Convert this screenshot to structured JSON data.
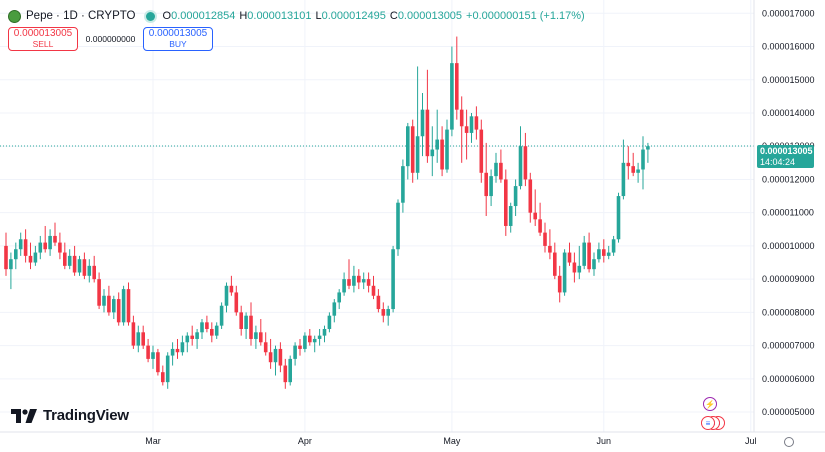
{
  "header": {
    "title": "Pepe · 1D · CRYPTO",
    "logo_icon": "pepe-logo-icon",
    "live_icon": "market-open-dot-icon",
    "ohlc": [
      {
        "key": "O",
        "value": "0.000012854"
      },
      {
        "key": "H",
        "value": "0.000013101"
      },
      {
        "key": "L",
        "value": "0.000012495"
      },
      {
        "key": "C",
        "value": "0.000013005"
      }
    ],
    "change": "+0.000000151 (+1.17%)"
  },
  "trade": {
    "sell_price": "0.000013005",
    "sell_label": "SELL",
    "spread": "0.000000000",
    "buy_price": "0.000013005",
    "buy_label": "BUY"
  },
  "brand": {
    "name": "TradingView",
    "icon": "tradingview-logo-icon"
  },
  "price_tag": {
    "price": "0.000013005",
    "countdown": "14:04:24"
  },
  "indicators": {
    "bolt_icon": "lightning-icon",
    "flag_icon": "us-flag-icon",
    "settings_icon": "gear-icon"
  },
  "colors": {
    "up": "#26a69a",
    "down": "#f23645",
    "grid": "#f0f3fa",
    "axis_text": "#131722",
    "price_line": "#26a69a"
  },
  "chart_data": {
    "type": "candlestick",
    "y_axis": {
      "ticks": [
        "0.000017000",
        "0.000016000",
        "0.000015000",
        "0.000014000",
        "0.000013000",
        "0.000012000",
        "0.000011000",
        "0.000010000",
        "0.000009000",
        "0.000008000",
        "0.000007000",
        "0.000006000",
        "0.000005000"
      ],
      "range": [
        4.4e-06,
        1.74e-05
      ]
    },
    "x_axis": {
      "labels": [
        {
          "label": "Mar",
          "index": 30
        },
        {
          "label": "Apr",
          "index": 61
        },
        {
          "label": "May",
          "index": 91
        },
        {
          "label": "Jun",
          "index": 122
        },
        {
          "label": "Jul",
          "index": 152
        }
      ]
    },
    "current_price": 1.3005e-05,
    "candles": [
      [
        1e-05,
        1.04e-05,
        9.1e-06,
        9.3e-06
      ],
      [
        9.3e-06,
        9.8e-06,
        8.7e-06,
        9.6e-06
      ],
      [
        9.6e-06,
        1.01e-05,
        9.3e-06,
        9.9e-06
      ],
      [
        9.9e-06,
        1.04e-05,
        9.7e-06,
        1.02e-05
      ],
      [
        1.02e-05,
        1.05e-05,
        9.5e-06,
        9.7e-06
      ],
      [
        9.7e-06,
        1.01e-05,
        9.3e-06,
        9.5e-06
      ],
      [
        9.5e-06,
        1e-05,
        9.4e-06,
        9.8e-06
      ],
      [
        9.8e-06,
        1.03e-05,
        9.6e-06,
        1.01e-05
      ],
      [
        1.01e-05,
        1.06e-05,
        9.8e-06,
        9.9e-06
      ],
      [
        9.9e-06,
        1.05e-05,
        9.7e-06,
        1.03e-05
      ],
      [
        1.03e-05,
        1.07e-05,
        1e-05,
        1.01e-05
      ],
      [
        1.01e-05,
        1.04e-05,
        9.6e-06,
        9.8e-06
      ],
      [
        9.8e-06,
        1.01e-05,
        9.3e-06,
        9.4e-06
      ],
      [
        9.4e-06,
        9.9e-06,
        9.3e-06,
        9.7e-06
      ],
      [
        9.7e-06,
        1e-05,
        9.1e-06,
        9.2e-06
      ],
      [
        9.2e-06,
        9.7e-06,
        9.1e-06,
        9.6e-06
      ],
      [
        9.6e-06,
        9.8e-06,
        9e-06,
        9.1e-06
      ],
      [
        9.1e-06,
        9.6e-06,
        8.9e-06,
        9.4e-06
      ],
      [
        9.4e-06,
        9.7e-06,
        8.9e-06,
        9e-06
      ],
      [
        9e-06,
        9.2e-06,
        8.1e-06,
        8.2e-06
      ],
      [
        8.2e-06,
        8.7e-06,
        8e-06,
        8.5e-06
      ],
      [
        8.5e-06,
        8.8e-06,
        7.9e-06,
        8e-06
      ],
      [
        8e-06,
        8.5e-06,
        7.8e-06,
        8.4e-06
      ],
      [
        8.4e-06,
        8.6e-06,
        7.6e-06,
        7.7e-06
      ],
      [
        7.7e-06,
        8.8e-06,
        7.6e-06,
        8.7e-06
      ],
      [
        8.7e-06,
        8.9e-06,
        7.6e-06,
        7.7e-06
      ],
      [
        7.7e-06,
        7.9e-06,
        6.9e-06,
        7e-06
      ],
      [
        7e-06,
        7.6e-06,
        6.8e-06,
        7.4e-06
      ],
      [
        7.4e-06,
        7.6e-06,
        6.9e-06,
        7e-06
      ],
      [
        7e-06,
        7.2e-06,
        6.5e-06,
        6.6e-06
      ],
      [
        6.6e-06,
        7e-06,
        6.3e-06,
        6.8e-06
      ],
      [
        6.8e-06,
        6.9e-06,
        6.1e-06,
        6.2e-06
      ],
      [
        6.2e-06,
        6.4e-06,
        5.8e-06,
        5.9e-06
      ],
      [
        5.9e-06,
        6.8e-06,
        5.7e-06,
        6.7e-06
      ],
      [
        6.7e-06,
        7.1e-06,
        6.4e-06,
        6.9e-06
      ],
      [
        6.9e-06,
        7.2e-06,
        6.6e-06,
        6.8e-06
      ],
      [
        6.8e-06,
        7.3e-06,
        6.7e-06,
        7.1e-06
      ],
      [
        7.1e-06,
        7.4e-06,
        6.8e-06,
        7.3e-06
      ],
      [
        7.3e-06,
        7.6e-06,
        7e-06,
        7.2e-06
      ],
      [
        7.2e-06,
        7.5e-06,
        6.9e-06,
        7.4e-06
      ],
      [
        7.4e-06,
        7.8e-06,
        7.2e-06,
        7.7e-06
      ],
      [
        7.7e-06,
        7.9e-06,
        7.4e-06,
        7.5e-06
      ],
      [
        7.5e-06,
        7.7e-06,
        7.1e-06,
        7.3e-06
      ],
      [
        7.3e-06,
        7.7e-06,
        7.2e-06,
        7.6e-06
      ],
      [
        7.6e-06,
        8.3e-06,
        7.5e-06,
        8.2e-06
      ],
      [
        8.2e-06,
        8.9e-06,
        8e-06,
        8.8e-06
      ],
      [
        8.8e-06,
        9.1e-06,
        8.5e-06,
        8.6e-06
      ],
      [
        8.6e-06,
        8.8e-06,
        7.9e-06,
        8e-06
      ],
      [
        8e-06,
        8.2e-06,
        7.3e-06,
        7.5e-06
      ],
      [
        7.5e-06,
        8e-06,
        7.2e-06,
        7.9e-06
      ],
      [
        7.9e-06,
        8.3e-06,
        7e-06,
        7.2e-06
      ],
      [
        7.2e-06,
        7.6e-06,
        6.9e-06,
        7.4e-06
      ],
      [
        7.4e-06,
        7.8e-06,
        7e-06,
        7.1e-06
      ],
      [
        7.1e-06,
        7.4e-06,
        6.7e-06,
        6.8e-06
      ],
      [
        6.8e-06,
        7.2e-06,
        6.3e-06,
        6.5e-06
      ],
      [
        6.5e-06,
        7e-06,
        6.1e-06,
        6.9e-06
      ],
      [
        6.9e-06,
        7.1e-06,
        6.2e-06,
        6.4e-06
      ],
      [
        6.4e-06,
        6.6e-06,
        5.7e-06,
        5.9e-06
      ],
      [
        5.9e-06,
        6.7e-06,
        5.8e-06,
        6.6e-06
      ],
      [
        6.6e-06,
        7.1e-06,
        6.4e-06,
        7e-06
      ],
      [
        7e-06,
        7.2e-06,
        6.7e-06,
        6.9e-06
      ],
      [
        6.9e-06,
        7.4e-06,
        6.8e-06,
        7.3e-06
      ],
      [
        7.3e-06,
        7.5e-06,
        7e-06,
        7.1e-06
      ],
      [
        7.1e-06,
        7.3e-06,
        6.8e-06,
        7.2e-06
      ],
      [
        7.2e-06,
        7.5e-06,
        7e-06,
        7.3e-06
      ],
      [
        7.3e-06,
        7.6e-06,
        7.1e-06,
        7.5e-06
      ],
      [
        7.5e-06,
        8e-06,
        7.4e-06,
        7.9e-06
      ],
      [
        7.9e-06,
        8.4e-06,
        7.7e-06,
        8.3e-06
      ],
      [
        8.3e-06,
        8.7e-06,
        8.1e-06,
        8.6e-06
      ],
      [
        8.6e-06,
        9.2e-06,
        8.5e-06,
        9e-06
      ],
      [
        9e-06,
        9.6e-06,
        8.7e-06,
        8.8e-06
      ],
      [
        8.8e-06,
        9.4e-06,
        8.6e-06,
        9.1e-06
      ],
      [
        9.1e-06,
        9.3e-06,
        8.7e-06,
        8.9e-06
      ],
      [
        8.9e-06,
        9.2e-06,
        8.7e-06,
        9e-06
      ],
      [
        9e-06,
        9.2e-06,
        8.6e-06,
        8.8e-06
      ],
      [
        8.8e-06,
        9.1e-06,
        8.4e-06,
        8.5e-06
      ],
      [
        8.5e-06,
        8.7e-06,
        8e-06,
        8.1e-06
      ],
      [
        8.1e-06,
        8.3e-06,
        7.7e-06,
        7.9e-06
      ],
      [
        7.9e-06,
        8.2e-06,
        7.6e-06,
        8.1e-06
      ],
      [
        8.1e-06,
        1e-05,
        8e-06,
        9.9e-06
      ],
      [
        9.9e-06,
        1.14e-05,
        9.7e-06,
        1.13e-05
      ],
      [
        1.13e-05,
        1.26e-05,
        1.1e-05,
        1.24e-05
      ],
      [
        1.24e-05,
        1.37e-05,
        1.2e-05,
        1.36e-05
      ],
      [
        1.36e-05,
        1.38e-05,
        1.19e-05,
        1.22e-05
      ],
      [
        1.22e-05,
        1.54e-05,
        1.2e-05,
        1.33e-05
      ],
      [
        1.33e-05,
        1.46e-05,
        1.27e-05,
        1.41e-05
      ],
      [
        1.41e-05,
        1.53e-05,
        1.25e-05,
        1.27e-05
      ],
      [
        1.27e-05,
        1.36e-05,
        1.21e-05,
        1.29e-05
      ],
      [
        1.29e-05,
        1.41e-05,
        1.25e-05,
        1.32e-05
      ],
      [
        1.32e-05,
        1.36e-05,
        1.21e-05,
        1.23e-05
      ],
      [
        1.23e-05,
        1.38e-05,
        1.22e-05,
        1.35e-05
      ],
      [
        1.35e-05,
        1.6e-05,
        1.33e-05,
        1.55e-05
      ],
      [
        1.55e-05,
        1.63e-05,
        1.38e-05,
        1.41e-05
      ],
      [
        1.41e-05,
        1.45e-05,
        1.25e-05,
        1.36e-05
      ],
      [
        1.36e-05,
        1.41e-05,
        1.26e-05,
        1.34e-05
      ],
      [
        1.34e-05,
        1.4e-05,
        1.31e-05,
        1.39e-05
      ],
      [
        1.39e-05,
        1.42e-05,
        1.32e-05,
        1.35e-05
      ],
      [
        1.35e-05,
        1.38e-05,
        1.19e-05,
        1.22e-05
      ],
      [
        1.22e-05,
        1.31e-05,
        1.09e-05,
        1.15e-05
      ],
      [
        1.15e-05,
        1.23e-05,
        1.12e-05,
        1.21e-05
      ],
      [
        1.21e-05,
        1.28e-05,
        1.19e-05,
        1.25e-05
      ],
      [
        1.25e-05,
        1.29e-05,
        1.19e-05,
        1.2e-05
      ],
      [
        1.2e-05,
        1.23e-05,
        1.03e-05,
        1.06e-05
      ],
      [
        1.06e-05,
        1.13e-05,
        1.04e-05,
        1.12e-05
      ],
      [
        1.12e-05,
        1.2e-05,
        1.09e-05,
        1.18e-05
      ],
      [
        1.18e-05,
        1.36e-05,
        1.17e-05,
        1.3e-05
      ],
      [
        1.3e-05,
        1.34e-05,
        1.18e-05,
        1.2e-05
      ],
      [
        1.2e-05,
        1.22e-05,
        1.07e-05,
        1.1e-05
      ],
      [
        1.1e-05,
        1.17e-05,
        1.06e-05,
        1.08e-05
      ],
      [
        1.08e-05,
        1.13e-05,
        1.03e-05,
        1.04e-05
      ],
      [
        1.04e-05,
        1.07e-05,
        9.8e-06,
        1e-05
      ],
      [
        1e-05,
        1.05e-05,
        9.6e-06,
        9.8e-06
      ],
      [
        9.8e-06,
        1.01e-05,
        9e-06,
        9.1e-06
      ],
      [
        9.1e-06,
        9.4e-06,
        8.3e-06,
        8.6e-06
      ],
      [
        8.6e-06,
        9.9e-06,
        8.5e-06,
        9.8e-06
      ],
      [
        9.8e-06,
        1.01e-05,
        9.4e-06,
        9.5e-06
      ],
      [
        9.5e-06,
        9.8e-06,
        8.9e-06,
        9.2e-06
      ],
      [
        9.2e-06,
        1e-05,
        9e-06,
        9.4e-06
      ],
      [
        9.4e-06,
        1.03e-05,
        9.3e-06,
        1.01e-05
      ],
      [
        1.01e-05,
        1.04e-05,
        9.2e-06,
        9.3e-06
      ],
      [
        9.3e-06,
        9.8e-06,
        9.1e-06,
        9.6e-06
      ],
      [
        9.6e-06,
        1.01e-05,
        9.5e-06,
        9.9e-06
      ],
      [
        9.9e-06,
        1.02e-05,
        9.5e-06,
        9.7e-06
      ],
      [
        9.7e-06,
        1e-05,
        9.6e-06,
        9.8e-06
      ],
      [
        9.8e-06,
        1.03e-05,
        9.7e-06,
        1.02e-05
      ],
      [
        1.02e-05,
        1.16e-05,
        1.01e-05,
        1.15e-05
      ],
      [
        1.15e-05,
        1.32e-05,
        1.14e-05,
        1.25e-05
      ],
      [
        1.25e-05,
        1.3e-05,
        1.2e-05,
        1.24e-05
      ],
      [
        1.24e-05,
        1.28e-05,
        1.21e-05,
        1.22e-05
      ],
      [
        1.22e-05,
        1.25e-05,
        1.19e-05,
        1.23e-05
      ],
      [
        1.23e-05,
        1.33e-05,
        1.17e-05,
        1.29e-05
      ],
      [
        1.29e-05,
        1.31e-05,
        1.25e-05,
        1.3e-05
      ]
    ]
  }
}
